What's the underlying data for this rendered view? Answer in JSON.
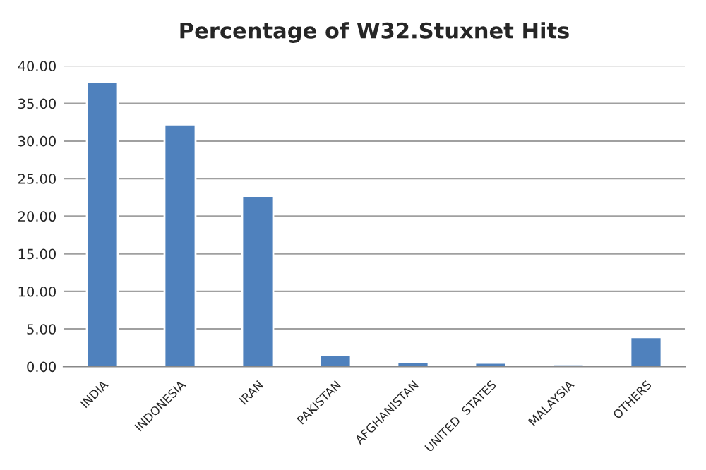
{
  "chart_data": {
    "type": "bar",
    "title": "Percentage of W32.Stuxnet Hits",
    "categories": [
      "INDIA",
      "INDONESIA",
      "IRAN",
      "PAKISTAN",
      "AFGHANISTAN",
      "UNITED  STATES",
      "MALAYSIA",
      "OTHERS"
    ],
    "values": [
      37.8,
      32.2,
      22.7,
      1.5,
      0.6,
      0.5,
      0.3,
      3.9
    ],
    "color": "#4f81bd",
    "ylim": [
      0,
      40
    ],
    "yticks": [
      {
        "value": 0,
        "label": "0.00"
      },
      {
        "value": 5,
        "label": "5.00"
      },
      {
        "value": 10,
        "label": "10.00"
      },
      {
        "value": 15,
        "label": "15.00"
      },
      {
        "value": 20,
        "label": "20.00"
      },
      {
        "value": 25,
        "label": "25.00"
      },
      {
        "value": 30,
        "label": "30.00"
      },
      {
        "value": 35,
        "label": "35.00"
      },
      {
        "value": 40,
        "label": "40.00"
      }
    ],
    "grid": "y"
  }
}
